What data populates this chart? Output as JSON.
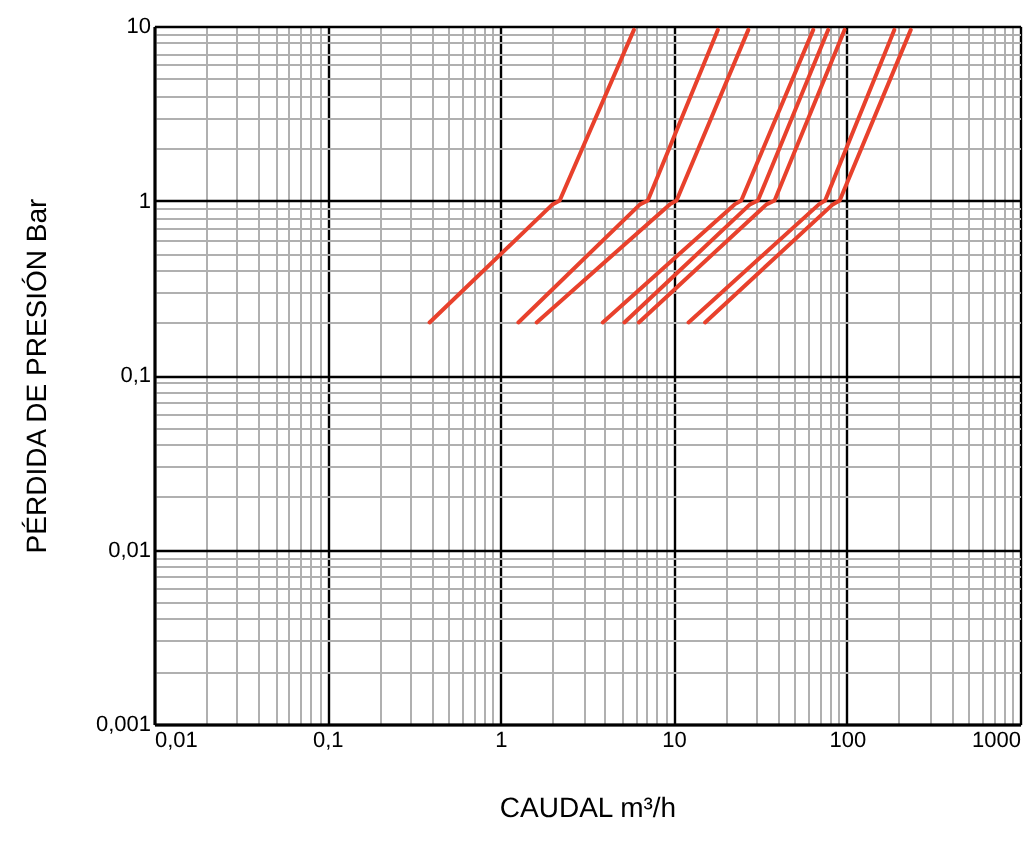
{
  "chart_data": {
    "type": "line",
    "xlabel": "CAUDAL m³/h",
    "ylabel": "PÉRDIDA DE PRESIÓN Bar",
    "log": "xy",
    "grid": true,
    "xlim": [
      0.01,
      1000
    ],
    "ylim": [
      0.001,
      10
    ],
    "xticks": [
      {
        "value": 0.01,
        "label": "0,01"
      },
      {
        "value": 0.02,
        "label": null
      },
      {
        "value": 0.03,
        "label": null
      },
      {
        "value": 0.04,
        "label": null
      },
      {
        "value": 0.05,
        "label": null
      },
      {
        "value": 0.06,
        "label": null
      },
      {
        "value": 0.07,
        "label": null
      },
      {
        "value": 0.08,
        "label": null
      },
      {
        "value": 0.09,
        "label": null
      },
      {
        "value": 0.1,
        "label": "0,1"
      },
      {
        "value": 0.2,
        "label": null
      },
      {
        "value": 0.3,
        "label": null
      },
      {
        "value": 0.4,
        "label": null
      },
      {
        "value": 0.5,
        "label": null
      },
      {
        "value": 0.6,
        "label": null
      },
      {
        "value": 0.7,
        "label": null
      },
      {
        "value": 0.8,
        "label": null
      },
      {
        "value": 0.9,
        "label": null
      },
      1,
      {
        "value": 2,
        "label": null
      },
      {
        "value": 3,
        "label": null
      },
      {
        "value": 4,
        "label": null
      },
      {
        "value": 5,
        "label": null
      },
      {
        "value": 6,
        "label": null
      },
      {
        "value": 7,
        "label": null
      },
      {
        "value": 8,
        "label": null
      },
      {
        "value": 9,
        "label": null
      },
      10,
      {
        "value": 20,
        "label": null
      },
      {
        "value": 30,
        "label": null
      },
      {
        "value": 40,
        "label": null
      },
      {
        "value": 50,
        "label": null
      },
      {
        "value": 60,
        "label": null
      },
      {
        "value": 70,
        "label": null
      },
      {
        "value": 80,
        "label": null
      },
      {
        "value": 90,
        "label": null
      },
      100,
      {
        "value": 200,
        "label": null
      },
      {
        "value": 300,
        "label": null
      },
      {
        "value": 400,
        "label": null
      },
      {
        "value": 500,
        "label": null
      },
      {
        "value": 600,
        "label": null
      },
      {
        "value": 700,
        "label": null
      },
      {
        "value": 800,
        "label": null
      },
      {
        "value": 900,
        "label": null
      },
      1000
    ],
    "yticks": [
      {
        "value": 0.001,
        "label": "0,001"
      },
      {
        "value": 0.002,
        "label": null
      },
      {
        "value": 0.003,
        "label": null
      },
      {
        "value": 0.004,
        "label": null
      },
      {
        "value": 0.005,
        "label": null
      },
      {
        "value": 0.006,
        "label": null
      },
      {
        "value": 0.007,
        "label": null
      },
      {
        "value": 0.008,
        "label": null
      },
      {
        "value": 0.009,
        "label": null
      },
      {
        "value": 0.01,
        "label": "0,01"
      },
      {
        "value": 0.02,
        "label": null
      },
      {
        "value": 0.03,
        "label": null
      },
      {
        "value": 0.04,
        "label": null
      },
      {
        "value": 0.05,
        "label": null
      },
      {
        "value": 0.06,
        "label": null
      },
      {
        "value": 0.07,
        "label": null
      },
      {
        "value": 0.08,
        "label": null
      },
      {
        "value": 0.09,
        "label": null
      },
      {
        "value": 0.1,
        "label": "0,1"
      },
      {
        "value": 0.2,
        "label": null
      },
      {
        "value": 0.3,
        "label": null
      },
      {
        "value": 0.4,
        "label": null
      },
      {
        "value": 0.5,
        "label": null
      },
      {
        "value": 0.6,
        "label": null
      },
      {
        "value": 0.7,
        "label": null
      },
      {
        "value": 0.8,
        "label": null
      },
      {
        "value": 0.9,
        "label": null
      },
      1,
      {
        "value": 2,
        "label": null
      },
      {
        "value": 3,
        "label": null
      },
      {
        "value": 4,
        "label": null
      },
      {
        "value": 5,
        "label": null
      },
      {
        "value": 6,
        "label": null
      },
      {
        "value": 7,
        "label": null
      },
      {
        "value": 8,
        "label": null
      },
      {
        "value": 9,
        "label": null
      },
      10
    ],
    "series": [
      {
        "color": "#e8412c",
        "x": [
          0.39,
          2.0,
          2.2,
          5.9
        ],
        "values": [
          0.2,
          0.95,
          1,
          9.5
        ]
      },
      {
        "color": "#e8412c",
        "x": [
          1.27,
          6.4,
          7.1,
          18
        ],
        "values": [
          0.2,
          0.95,
          1,
          9.5
        ]
      },
      {
        "color": "#e8412c",
        "x": [
          1.62,
          9.5,
          10.4,
          27
        ],
        "values": [
          0.2,
          0.95,
          1,
          9.5
        ]
      },
      {
        "color": "#e8412c",
        "x": [
          3.9,
          22.5,
          24.6,
          64
        ],
        "values": [
          0.2,
          0.95,
          1,
          9.5
        ]
      },
      {
        "color": "#e8412c",
        "x": [
          5.2,
          27.6,
          30.7,
          78
        ],
        "values": [
          0.2,
          0.95,
          1,
          9.5
        ]
      },
      {
        "color": "#e8412c",
        "x": [
          6.3,
          34.4,
          38.3,
          97
        ],
        "values": [
          0.2,
          0.95,
          1,
          9.5
        ]
      },
      {
        "color": "#e8412c",
        "x": [
          12.2,
          69,
          75,
          188
        ],
        "values": [
          0.2,
          0.95,
          1,
          9.5
        ]
      },
      {
        "color": "#e8412c",
        "x": [
          15.2,
          83,
          91,
          234
        ],
        "values": [
          0.2,
          0.95,
          1,
          9.5
        ]
      }
    ]
  }
}
